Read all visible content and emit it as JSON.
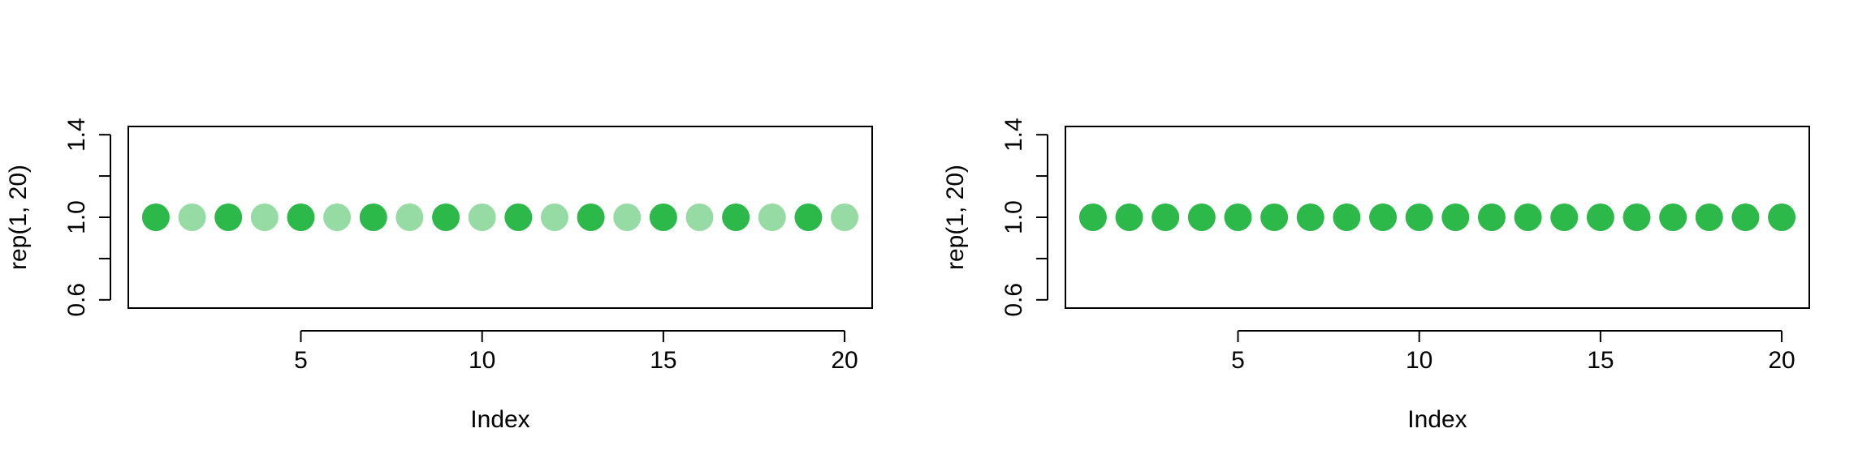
{
  "chart_data": [
    {
      "type": "scatter",
      "x": [
        1,
        2,
        3,
        4,
        5,
        6,
        7,
        8,
        9,
        10,
        11,
        12,
        13,
        14,
        15,
        16,
        17,
        18,
        19,
        20
      ],
      "y": [
        1,
        1,
        1,
        1,
        1,
        1,
        1,
        1,
        1,
        1,
        1,
        1,
        1,
        1,
        1,
        1,
        1,
        1,
        1,
        1
      ],
      "point_opacity": [
        1,
        0.5,
        1,
        0.5,
        1,
        0.5,
        1,
        0.5,
        1,
        0.5,
        1,
        0.5,
        1,
        0.5,
        1,
        0.5,
        1,
        0.5,
        1,
        0.5
      ],
      "color": "#2db84a",
      "xlabel": "Index",
      "ylabel": "rep(1, 20)",
      "xlim": [
        0.24,
        20.76
      ],
      "ylim": [
        0.56,
        1.44
      ],
      "xticks": [
        5,
        10,
        15,
        20
      ],
      "yticks": [
        "0.6",
        "0.8",
        "1.0",
        "1.2",
        "1.4"
      ],
      "ytick_labels_shown": [
        "0.6",
        "1.0",
        "1.4"
      ],
      "grid": false,
      "legend": "none"
    },
    {
      "type": "scatter",
      "x": [
        1,
        2,
        3,
        4,
        5,
        6,
        7,
        8,
        9,
        10,
        11,
        12,
        13,
        14,
        15,
        16,
        17,
        18,
        19,
        20
      ],
      "y": [
        1,
        1,
        1,
        1,
        1,
        1,
        1,
        1,
        1,
        1,
        1,
        1,
        1,
        1,
        1,
        1,
        1,
        1,
        1,
        1
      ],
      "point_opacity": [
        1,
        1,
        1,
        1,
        1,
        1,
        1,
        1,
        1,
        1,
        1,
        1,
        1,
        1,
        1,
        1,
        1,
        1,
        1,
        1
      ],
      "color": "#2db84a",
      "xlabel": "Index",
      "ylabel": "rep(1, 20)",
      "xlim": [
        0.24,
        20.76
      ],
      "ylim": [
        0.56,
        1.44
      ],
      "xticks": [
        5,
        10,
        15,
        20
      ],
      "yticks": [
        "0.6",
        "0.8",
        "1.0",
        "1.2",
        "1.4"
      ],
      "ytick_labels_shown": [
        "0.6",
        "1.0",
        "1.4"
      ],
      "grid": false,
      "legend": "none"
    }
  ]
}
